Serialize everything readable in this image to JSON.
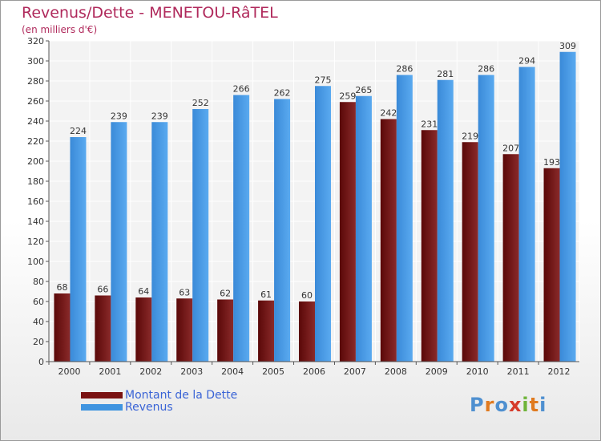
{
  "header": {
    "title": "Revenus/Dette - MENETOU-RâTEL",
    "subtitle": "(en milliers d'€)"
  },
  "chart_data": {
    "type": "bar",
    "title": "Revenus/Dette - MENETOU-RâTEL",
    "subtitle": "(en milliers d'€)",
    "xlabel": "",
    "ylabel": "",
    "categories": [
      "2000",
      "2001",
      "2002",
      "2003",
      "2004",
      "2005",
      "2006",
      "2007",
      "2008",
      "2009",
      "2010",
      "2011",
      "2012"
    ],
    "series": [
      {
        "name": "Montant de la Dette",
        "color": "#7a1212",
        "values": [
          68,
          66,
          64,
          63,
          62,
          61,
          60,
          259,
          242,
          231,
          219,
          207,
          193
        ]
      },
      {
        "name": "Revenus",
        "color": "#3f94e0",
        "values": [
          224,
          239,
          239,
          252,
          266,
          262,
          275,
          265,
          286,
          281,
          286,
          294,
          309
        ]
      }
    ],
    "ylim": [
      0,
      320
    ],
    "yticks": [
      0,
      20,
      40,
      60,
      80,
      100,
      120,
      140,
      160,
      180,
      200,
      220,
      240,
      260,
      280,
      300,
      320
    ],
    "grid": true,
    "data_labels": true,
    "legend_position": "bottom-left"
  },
  "legend": {
    "items": [
      {
        "label": "Montant de la Dette",
        "color": "#7a1212"
      },
      {
        "label": "Revenus",
        "color": "#3f94e0"
      }
    ]
  },
  "logo": {
    "letters": [
      "P",
      "r",
      "o",
      "x",
      "i",
      "t",
      "i"
    ],
    "colors": [
      "#4f90d0",
      "#e07a1f",
      "#4f90d0",
      "#d63a2a",
      "#6fb43a",
      "#e07a1f",
      "#4f90d0"
    ]
  }
}
